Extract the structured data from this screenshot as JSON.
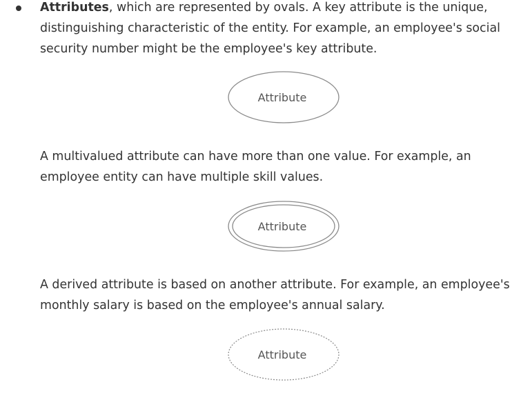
{
  "bullet_item": {
    "term": "Attributes",
    "line1_rest": ", which are represented by ovals. A key attribute is the unique,",
    "line2": "distinguishing characteristic of the entity. For example, an employee's social",
    "line3": "security number might be the employee's key attribute."
  },
  "multivalued": {
    "line1": "A multivalued attribute can have more than one value. For example, an",
    "line2": "employee entity can have multiple skill values."
  },
  "derived": {
    "line1": "A derived attribute is based on another attribute. For example, an employee's",
    "line2": "monthly salary is based on the employee's annual salary."
  },
  "diagrams": {
    "key_attribute_label": "Attribute",
    "multivalued_attribute_label": "Attribute",
    "derived_attribute_label": "Attribute"
  }
}
